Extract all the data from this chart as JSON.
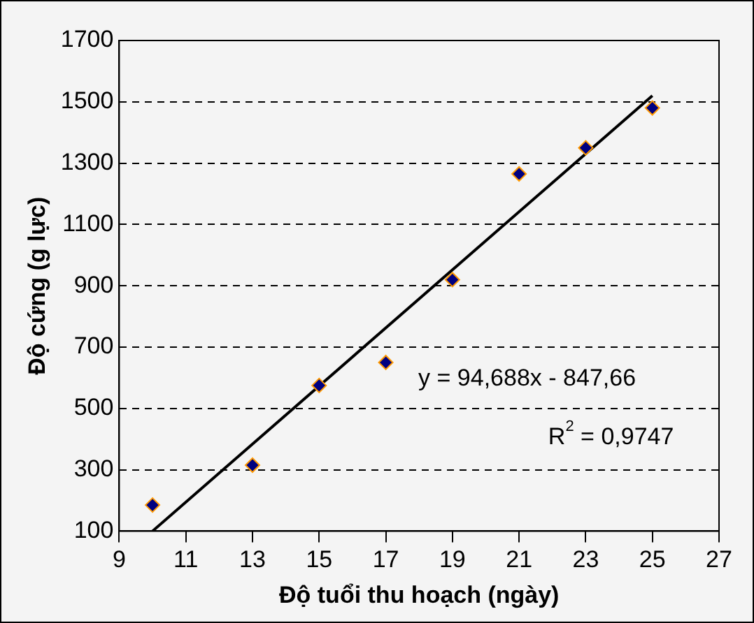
{
  "chart_data": {
    "type": "scatter",
    "xlabel": "Độ tuổi thu hoạch (ngày)",
    "ylabel": "Độ cứng (g lực)",
    "xlim": [
      9,
      27
    ],
    "xticks": [
      9,
      11,
      13,
      15,
      17,
      19,
      21,
      23,
      25,
      27
    ],
    "ylim": [
      100,
      1700
    ],
    "yticks": [
      100,
      300,
      500,
      700,
      900,
      1100,
      1300,
      1500,
      1700
    ],
    "grid": "y",
    "legend": false,
    "marker": "diamond",
    "series": [
      {
        "type": "scatter",
        "color": "#000080",
        "x": [
          10,
          13,
          15,
          17,
          19,
          21,
          23,
          25
        ],
        "values": [
          185,
          315,
          575,
          650,
          920,
          1265,
          1350,
          1480
        ]
      },
      {
        "type": "line",
        "color": "#000000",
        "x": [
          10,
          25
        ],
        "values": [
          100,
          1520
        ],
        "marker": "none"
      }
    ],
    "annotations": [
      "y = 94,688x - 847,66",
      "R$^{2}$ = 0,9747"
    ]
  }
}
